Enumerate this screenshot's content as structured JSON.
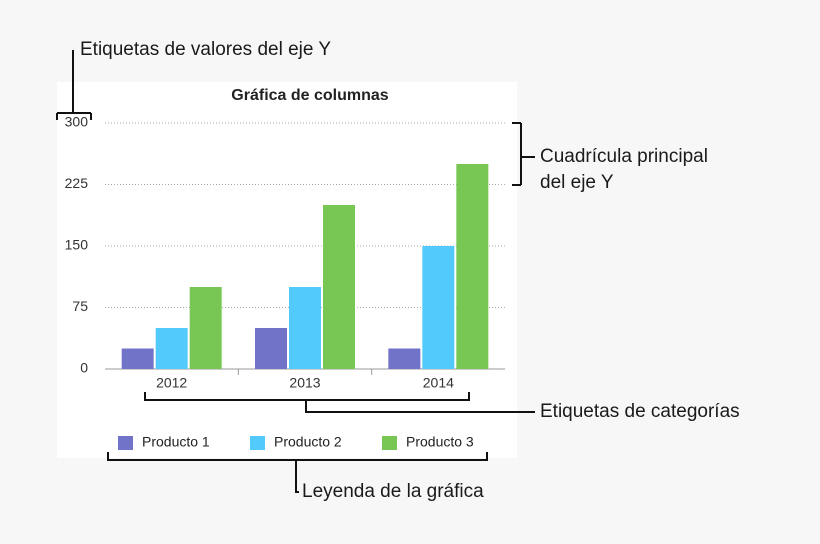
{
  "chart_data": {
    "type": "bar",
    "title": "Gráfica de columnas",
    "categories": [
      "2012",
      "2013",
      "2014"
    ],
    "series": [
      {
        "name": "Producto 1",
        "color": "#7173c8",
        "values": [
          25,
          50,
          25
        ]
      },
      {
        "name": "Producto 2",
        "color": "#52cafb",
        "values": [
          50,
          100,
          150
        ]
      },
      {
        "name": "Producto 3",
        "color": "#78c653",
        "values": [
          100,
          200,
          250
        ]
      }
    ],
    "ylim": [
      0,
      300
    ],
    "yticks": [
      0,
      75,
      150,
      225,
      300
    ],
    "grid": true,
    "legend": "bottom",
    "annotations": {
      "y_tick_labels": "Etiquetas de valores del eje Y",
      "grid": [
        "Cuadrícula principal",
        "del eje Y"
      ],
      "categories": "Etiquetas de categorías",
      "legend": "Leyenda de la gráfica"
    }
  }
}
